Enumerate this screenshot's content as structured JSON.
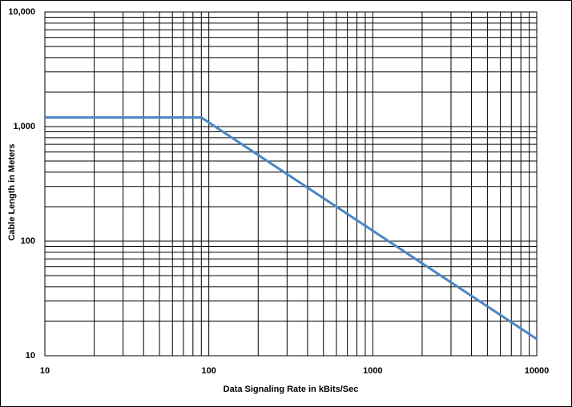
{
  "chart_data": {
    "type": "line",
    "x_label": "Data Signaling  Rate in kBits/Sec",
    "y_label": "Cable Length in Meters",
    "x": [
      10,
      90,
      10000
    ],
    "series": [
      {
        "color": "#4a86c5",
        "values": [
          1200,
          1200,
          14
        ]
      }
    ],
    "log_x": true,
    "log_y": true,
    "grid": true,
    "xlim": [
      10,
      10000
    ],
    "ylim": [
      10,
      10000
    ],
    "xticks": [
      10,
      100,
      1000,
      10000
    ],
    "yticks": [
      10,
      100,
      {
        "value": 1000,
        "label": "1,000"
      },
      {
        "value": 10000,
        "label": "10,000"
      }
    ],
    "xminorticks": [
      20,
      30,
      40,
      50,
      60,
      70,
      80,
      90,
      200,
      300,
      400,
      500,
      600,
      700,
      800,
      900,
      2000,
      3000,
      4000,
      5000,
      6000,
      7000,
      8000,
      9000
    ],
    "yminorticks": [
      20,
      30,
      40,
      50,
      60,
      70,
      80,
      90,
      200,
      300,
      400,
      500,
      600,
      700,
      800,
      900,
      2000,
      3000,
      4000,
      5000,
      6000,
      7000,
      8000,
      9000
    ]
  }
}
